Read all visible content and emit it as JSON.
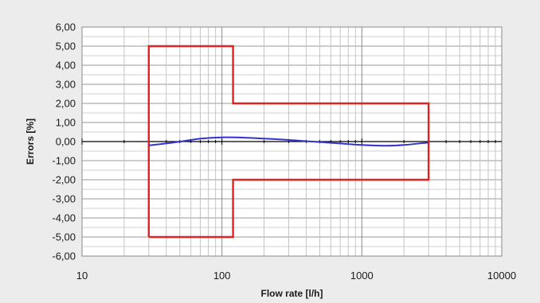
{
  "chart_data": {
    "type": "line",
    "xlabel": "Flow rate [l/h]",
    "ylabel": "Errors [%]",
    "x_scale": "log",
    "xlim": [
      10,
      10000
    ],
    "ylim": [
      -6,
      6
    ],
    "x_ticks": [
      10,
      100,
      1000,
      10000
    ],
    "x_tick_labels": [
      "10",
      "100",
      "1000",
      "10000"
    ],
    "y_ticks": [
      -6,
      -5,
      -4,
      -3,
      -2,
      -1,
      0,
      1,
      2,
      3,
      4,
      5,
      6
    ],
    "y_tick_labels": [
      "-6,00",
      "-5,00",
      "-4,00",
      "-3,00",
      "-2,00",
      "-1,00",
      "0,00",
      "1,00",
      "2,00",
      "3,00",
      "4,00",
      "5,00",
      "6,00"
    ],
    "grid": true,
    "legend": "none",
    "series": [
      {
        "color": "#e32121",
        "x": [
          30,
          30,
          120,
          120,
          3000,
          3000,
          120,
          120,
          30
        ],
        "y": [
          -5,
          5,
          5,
          2,
          2,
          -2,
          -2,
          -5,
          -5
        ]
      },
      {
        "color": "#3333cc",
        "x": [
          30,
          45,
          70,
          100,
          150,
          250,
          400,
          700,
          1000,
          1500,
          2000,
          3000
        ],
        "y": [
          -0.2,
          -0.05,
          0.15,
          0.22,
          0.2,
          0.12,
          0.02,
          -0.1,
          -0.18,
          -0.22,
          -0.18,
          -0.05
        ]
      }
    ],
    "zero_line": {
      "color": "#000000",
      "y": 0
    }
  }
}
